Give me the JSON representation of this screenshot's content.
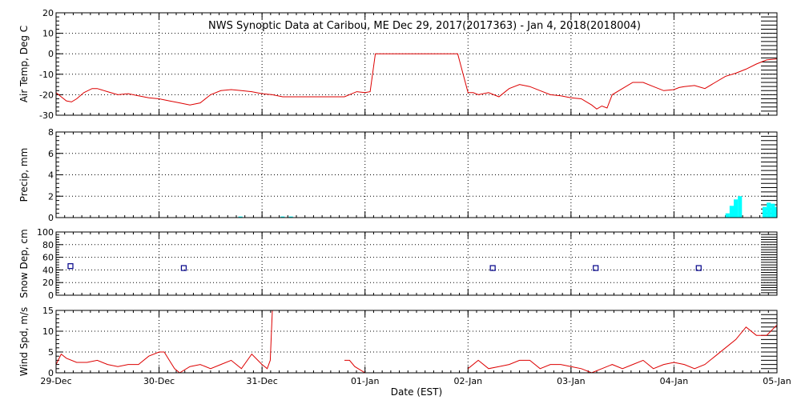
{
  "title": "NWS Synoptic Data at Caribou, ME   Dec 29, 2017(2017363) - Jan  4, 2018(2018004)",
  "colors": {
    "line": "#dd0000",
    "bar": "#00ffff",
    "marker": "#000088",
    "axis": "#000000"
  },
  "chart_data": {
    "type": "multi-panel time series",
    "xlabel": "Date (EST)",
    "x_tick_labels": [
      "29-Dec",
      "30-Dec",
      "31-Dec",
      "01-Jan",
      "02-Jan",
      "03-Jan",
      "04-Jan",
      "05-Jan"
    ],
    "x_unit": "days since 29-Dec",
    "xlim": [
      0,
      7
    ],
    "grid": true,
    "panels": [
      {
        "id": "air_temp",
        "type": "line",
        "ylabel": "Air Temp, Deg C",
        "ylim": [
          -30,
          20
        ],
        "yticks": [
          -30,
          -20,
          -10,
          0,
          10,
          20
        ],
        "x": [
          0,
          0.05,
          0.1,
          0.15,
          0.2,
          0.27,
          0.35,
          0.4,
          0.5,
          0.6,
          0.7,
          0.8,
          0.9,
          1.0,
          1.1,
          1.2,
          1.3,
          1.4,
          1.5,
          1.6,
          1.7,
          1.8,
          1.9,
          2.0,
          2.1,
          2.2,
          2.4,
          2.6,
          2.8,
          2.92,
          3.0,
          3.05,
          3.1,
          3.3,
          3.6,
          3.9,
          4.0,
          4.05,
          4.1,
          4.2,
          4.25,
          4.3,
          4.35,
          4.4,
          4.5,
          4.6,
          4.7,
          4.8,
          4.9,
          5.0,
          5.1,
          5.2,
          5.25,
          5.3,
          5.35,
          5.4,
          5.5,
          5.6,
          5.7,
          5.8,
          5.9,
          6.0,
          6.05,
          6.1,
          6.2,
          6.3,
          6.4,
          6.5,
          6.6,
          6.7,
          6.8,
          6.9,
          7.0
        ],
        "y": [
          -19,
          -21,
          -23,
          -23.5,
          -22,
          -19,
          -17,
          -17,
          -18.5,
          -20,
          -19.5,
          -20.5,
          -21.5,
          -22,
          -23,
          -24,
          -25,
          -24,
          -20,
          -18,
          -17.5,
          -18,
          -18.5,
          -19.5,
          -20,
          -21,
          -21,
          -21,
          -21,
          -18.5,
          -19,
          -18.5,
          0,
          0,
          0,
          0,
          -19,
          -19,
          -20,
          -19,
          -20,
          -21,
          -19,
          -17,
          -15,
          -16,
          -18,
          -20,
          -20.5,
          -21.5,
          -22,
          -25,
          -27,
          -25.5,
          -26.5,
          -20,
          -17,
          -14,
          -14,
          -16,
          -18,
          -17.5,
          -16.5,
          -16,
          -15.5,
          -17,
          -14,
          -11,
          -9.5,
          -7.5,
          -5,
          -3,
          -2.5
        ]
      },
      {
        "id": "precip",
        "type": "bar",
        "ylabel": "Precip, mm",
        "ylim": [
          0,
          8
        ],
        "yticks": [
          0,
          2,
          4,
          6,
          8
        ],
        "bar_width": 0.04,
        "x": [
          1.77,
          2.18,
          2.26,
          6.5,
          6.54,
          6.58,
          6.62,
          6.86,
          6.9,
          6.94,
          6.98
        ],
        "values": [
          0.1,
          0.1,
          0.1,
          0.4,
          1.1,
          1.7,
          2.0,
          1.0,
          1.4,
          1.3,
          1.0
        ]
      },
      {
        "id": "snow_depth",
        "type": "scatter",
        "ylabel": "Snow Dep, cm",
        "ylim": [
          0,
          100
        ],
        "yticks": [
          0,
          20,
          40,
          60,
          80,
          100
        ],
        "x": [
          0.14,
          1.24,
          4.24,
          5.24,
          6.24
        ],
        "y": [
          46,
          43,
          43,
          43,
          43
        ]
      },
      {
        "id": "wind_speed",
        "type": "line",
        "ylabel": "Wind Spd, m/s",
        "ylim": [
          0,
          15
        ],
        "yticks": [
          0,
          5,
          10,
          15
        ],
        "segments": [
          {
            "x": [
              0,
              0.05,
              0.1,
              0.2,
              0.3,
              0.4,
              0.5,
              0.6,
              0.7,
              0.8,
              0.9,
              1.0,
              1.05,
              1.1,
              1.15,
              1.2,
              1.3,
              1.4,
              1.5,
              1.6,
              1.7,
              1.8,
              1.9,
              2.0,
              2.05,
              2.08,
              2.1
            ],
            "y": [
              2,
              4.5,
              3.5,
              2.5,
              2.5,
              3,
              2,
              1.5,
              2,
              2,
              4,
              5,
              5,
              3,
              1,
              0,
              1.5,
              2,
              1,
              2,
              3,
              1,
              4.5,
              2,
              1,
              3,
              15
            ]
          },
          {
            "x": [
              2.8,
              2.85,
              2.9,
              3.0
            ],
            "y": [
              3,
              3,
              1.5,
              0
            ]
          },
          {
            "x": [
              4.0,
              4.1,
              4.2,
              4.3,
              4.4,
              4.5,
              4.6,
              4.7,
              4.8,
              4.9,
              5.0,
              5.1,
              5.2,
              5.3,
              5.4,
              5.5,
              5.6,
              5.7,
              5.8,
              5.9,
              6.0,
              6.1,
              6.2,
              6.3,
              6.4,
              6.5,
              6.6,
              6.7,
              6.8,
              6.9,
              7.0
            ],
            "y": [
              1,
              3,
              1,
              1.5,
              2,
              3,
              3,
              1,
              2,
              2,
              1.5,
              1,
              0,
              1,
              2,
              1,
              2,
              3,
              1,
              2,
              2.5,
              2,
              1,
              2,
              4,
              6,
              8,
              11,
              9,
              9,
              11.5
            ]
          }
        ]
      }
    ]
  }
}
